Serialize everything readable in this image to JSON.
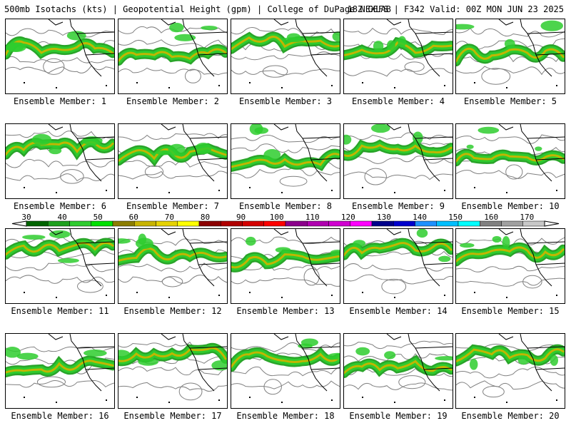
{
  "header": {
    "left": "500mb Isotachs (kts) | Geopotential Height (gpm) | College of DuPage NEXLAB",
    "right": "18Z GEFS | F342 Valid: 00Z MON JUN 23 2025"
  },
  "panels": [
    {
      "label": "Ensemble Member: 1"
    },
    {
      "label": "Ensemble Member: 2"
    },
    {
      "label": "Ensemble Member: 3"
    },
    {
      "label": "Ensemble Member: 4"
    },
    {
      "label": "Ensemble Member: 5"
    },
    {
      "label": "Ensemble Member: 6"
    },
    {
      "label": "Ensemble Member: 7"
    },
    {
      "label": "Ensemble Member: 8"
    },
    {
      "label": "Ensemble Member: 9"
    },
    {
      "label": "Ensemble Member: 10"
    },
    {
      "label": "Ensemble Member: 11"
    },
    {
      "label": "Ensemble Member: 12"
    },
    {
      "label": "Ensemble Member: 13"
    },
    {
      "label": "Ensemble Member: 14"
    },
    {
      "label": "Ensemble Member: 15"
    },
    {
      "label": "Ensemble Member: 16"
    },
    {
      "label": "Ensemble Member: 17"
    },
    {
      "label": "Ensemble Member: 18"
    },
    {
      "label": "Ensemble Member: 19"
    },
    {
      "label": "Ensemble Member: 20"
    }
  ],
  "colorbar": {
    "ticks": [
      "30",
      "40",
      "50",
      "60",
      "70",
      "80",
      "90",
      "100",
      "110",
      "120",
      "130",
      "140",
      "150",
      "160",
      "170"
    ],
    "colors": [
      "#006400",
      "#1fa01f",
      "#2ecc2e",
      "#00e000",
      "#8b7d00",
      "#c8b400",
      "#e6d200",
      "#ffff00",
      "#8b0000",
      "#b00000",
      "#d40000",
      "#ff0000",
      "#8b008b",
      "#b000b0",
      "#d000d0",
      "#ff00ff",
      "#00008b",
      "#0000cd",
      "#1e90ff",
      "#00bfff",
      "#00ffff",
      "#808080",
      "#a0a0a0",
      "#c8c8c8"
    ]
  }
}
